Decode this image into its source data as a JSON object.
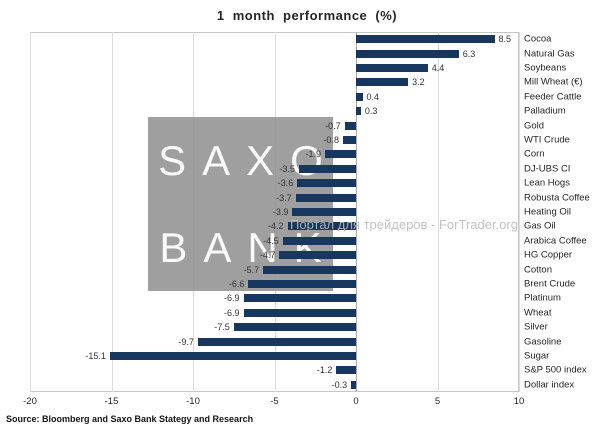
{
  "title": "1 month performance (%)",
  "source": "Source: Bloomberg and Saxo Bank Stategy and Research",
  "watermark": {
    "line1": "SAXO",
    "line2": "BANK",
    "overlay": "Портал для трейдеров - ForTrader.org"
  },
  "chart_data": {
    "type": "bar",
    "orientation": "horizontal",
    "title": "1 month performance (%)",
    "categories": [
      "Cocoa",
      "Natural Gas",
      "Soybeans",
      "Mill Wheat (€)",
      "Feeder Cattle",
      "Palladium",
      "Gold",
      "WTI Crude",
      "Corn",
      "DJ-UBS CI",
      "Lean Hogs",
      "Robusta Coffee",
      "Heating Oil",
      "Gas Oil",
      "Arabica Coffee",
      "HG Copper",
      "Cotton",
      "Brent Crude",
      "Platinum",
      "Wheat",
      "Silver",
      "Gasoline",
      "Sugar",
      "S&P 500 index",
      "Dollar index"
    ],
    "values": [
      8.5,
      6.3,
      4.4,
      3.2,
      0.4,
      0.3,
      -0.7,
      -0.8,
      -1.9,
      -3.5,
      -3.6,
      -3.7,
      -3.9,
      -4.2,
      -4.5,
      -4.7,
      -5.7,
      -6.6,
      -6.9,
      -6.9,
      -7.5,
      -9.7,
      -15.1,
      -1.2,
      -0.3
    ],
    "xlim": [
      -20,
      10
    ],
    "xticks": [
      -20,
      -15,
      -10,
      -5,
      0,
      5,
      10
    ],
    "bar_color": "#17375E",
    "grid": true,
    "value_labels": true,
    "legend": "none"
  }
}
